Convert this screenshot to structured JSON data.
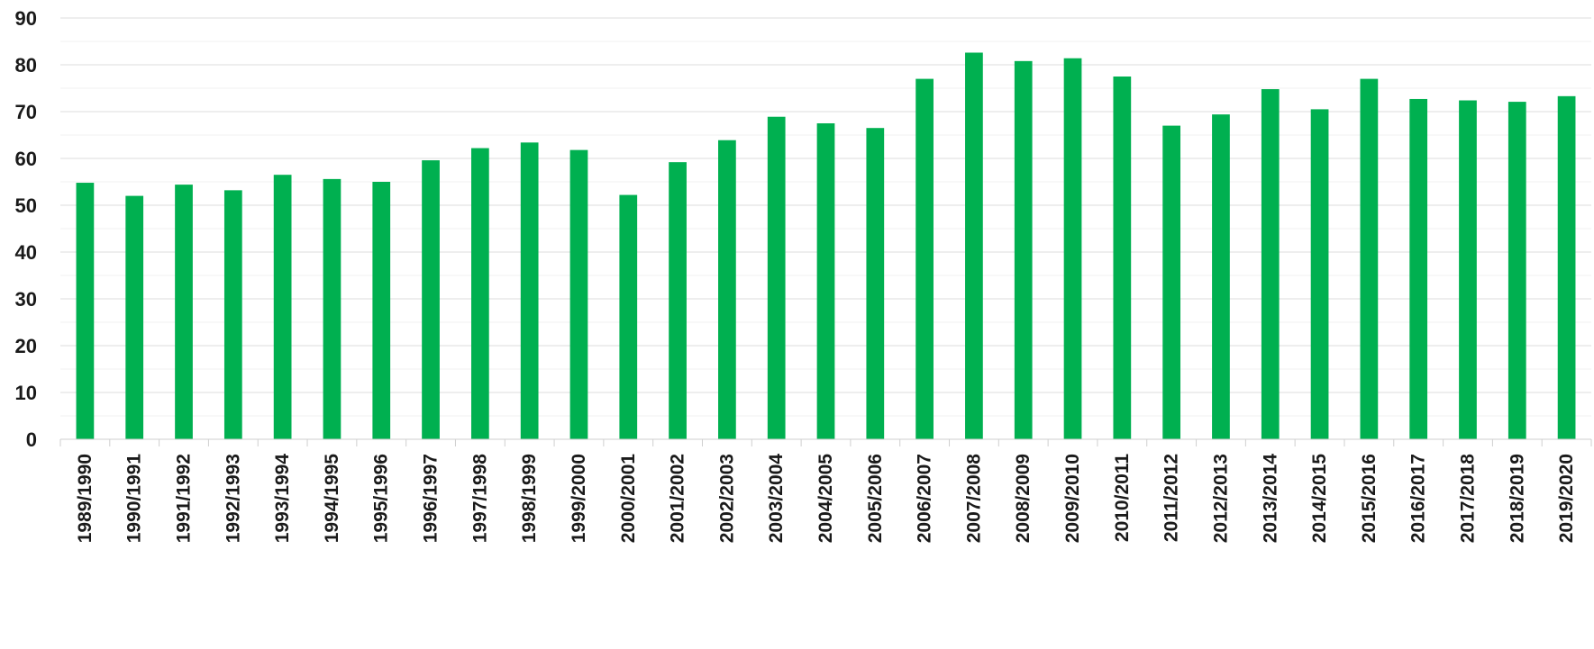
{
  "chart_data": {
    "type": "bar",
    "title": "",
    "xlabel": "",
    "ylabel": "",
    "ylim": [
      0,
      90
    ],
    "yticks": [
      0,
      10,
      20,
      30,
      40,
      50,
      60,
      70,
      80,
      90
    ],
    "grid": true,
    "bar_color": "#00b050",
    "categories": [
      "1989/1990",
      "1990/1991",
      "1991/1992",
      "1992/1993",
      "1993/1994",
      "1994/1995",
      "1995/1996",
      "1996/1997",
      "1997/1998",
      "1998/1999",
      "1999/2000",
      "2000/2001",
      "2001/2002",
      "2002/2003",
      "2003/2004",
      "2004/2005",
      "2005/2006",
      "2006/2007",
      "2007/2008",
      "2008/2009",
      "2009/2010",
      "2010/2011",
      "2011/2012",
      "2012/2013",
      "2013/2014",
      "2014/2015",
      "2015/2016",
      "2016/2017",
      "2017/2018",
      "2018/2019",
      "2019/2020"
    ],
    "values": [
      54.8,
      52.0,
      54.4,
      53.2,
      56.5,
      55.6,
      55.0,
      59.6,
      62.2,
      63.4,
      61.8,
      52.2,
      59.2,
      63.9,
      68.9,
      67.5,
      66.5,
      77.0,
      82.6,
      80.8,
      81.4,
      77.5,
      67.0,
      69.4,
      74.8,
      70.5,
      77.0,
      72.7,
      72.4,
      72.1,
      73.3
    ]
  }
}
